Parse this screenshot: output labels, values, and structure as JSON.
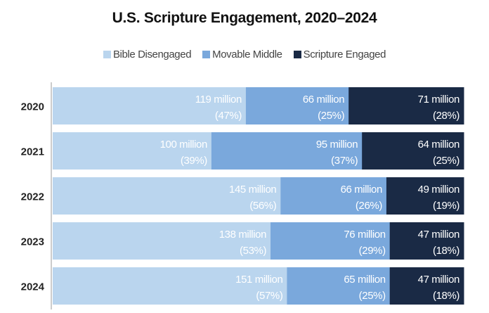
{
  "chart_data": {
    "type": "bar",
    "orientation": "horizontal",
    "stacked": true,
    "percent_stacked": true,
    "title": "U.S. Scripture Engagement, 2020–2024",
    "categories": [
      "2020",
      "2021",
      "2022",
      "2023",
      "2024"
    ],
    "legend_position": "top",
    "grid": false,
    "series": [
      {
        "name": "Bible Disengaged",
        "color": "#bad5ee",
        "values": [
          119,
          100,
          145,
          138,
          151
        ],
        "percents": [
          47,
          39,
          56,
          53,
          57
        ],
        "labels": [
          "119 million",
          "100 million",
          "145 million",
          "138 million",
          "151 million"
        ],
        "pct_labels": [
          "(47%)",
          "(39%)",
          "(56%)",
          "(53%)",
          "(57%)"
        ]
      },
      {
        "name": "Movable Middle",
        "color": "#7aa8dc",
        "values": [
          66,
          95,
          66,
          76,
          65
        ],
        "percents": [
          25,
          37,
          26,
          29,
          25
        ],
        "labels": [
          "66 million",
          "95 million",
          "66 million",
          "76 million",
          "65 million"
        ],
        "pct_labels": [
          "(25%)",
          "(37%)",
          "(26%)",
          "(29%)",
          "(25%)"
        ]
      },
      {
        "name": "Scripture Engaged",
        "color": "#1a2a45",
        "values": [
          71,
          64,
          49,
          47,
          47
        ],
        "percents": [
          28,
          25,
          19,
          18,
          18
        ],
        "labels": [
          "71 million",
          "64 million",
          "49 million",
          "47 million",
          "47 million"
        ],
        "pct_labels": [
          "(28%)",
          "(25%)",
          "(19%)",
          "(18%)",
          "(18%)"
        ]
      }
    ],
    "unit": "million"
  }
}
